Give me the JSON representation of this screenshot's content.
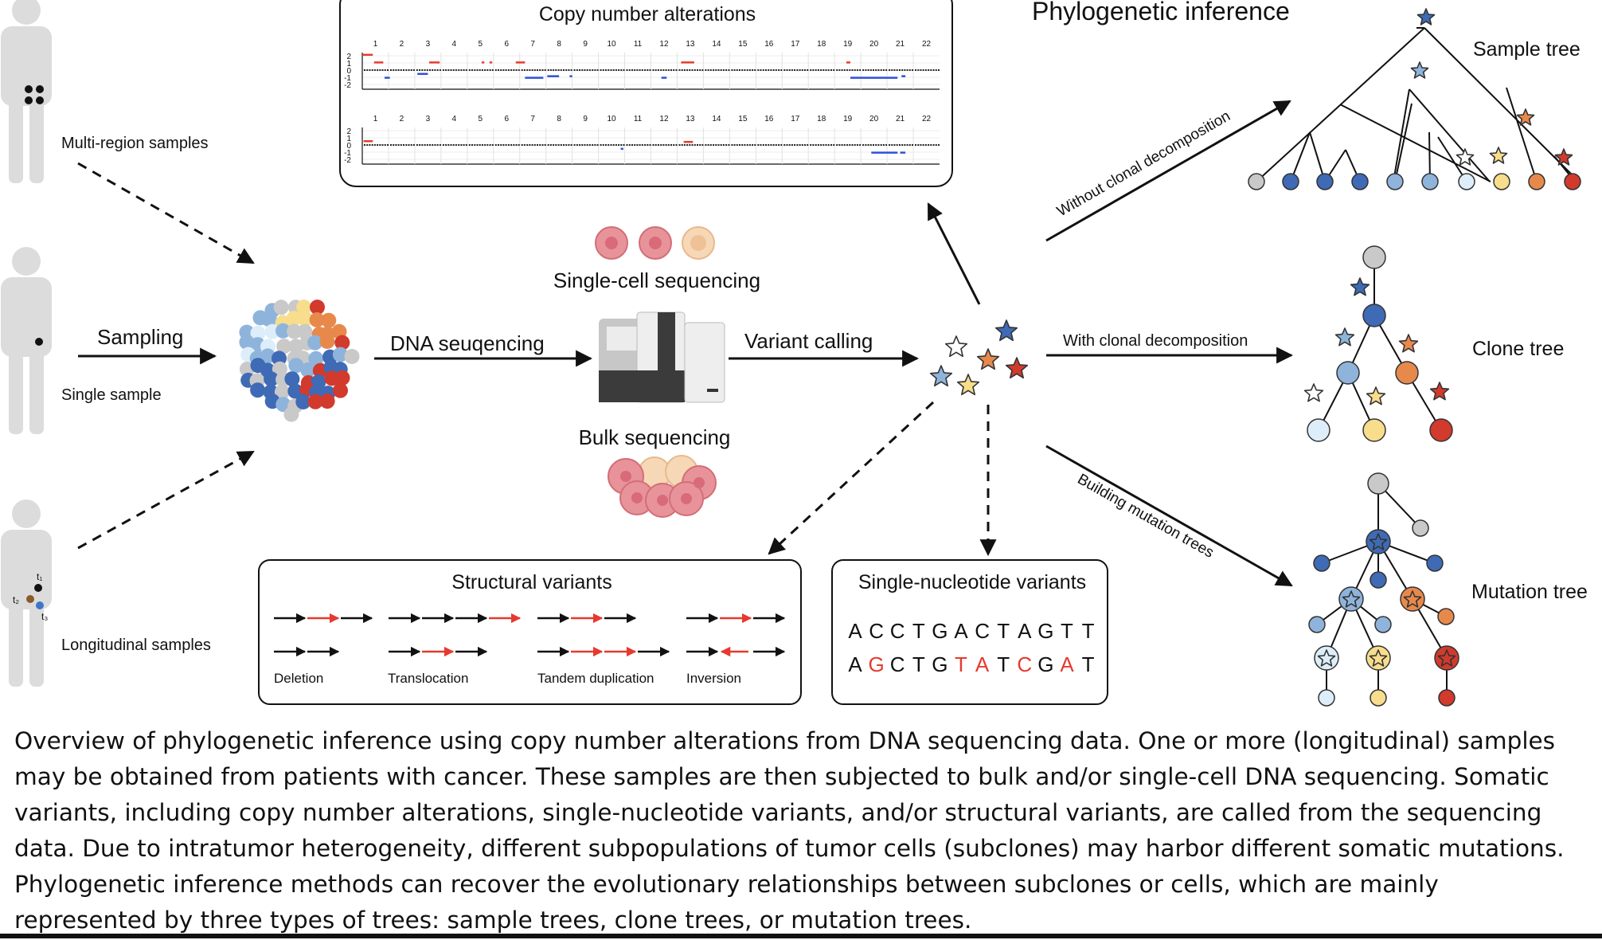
{
  "colors": {
    "line": "#111111",
    "accent_red": "#e53a2f",
    "gain": "#e53a2f",
    "loss": "#2e4fd8",
    "person": "#dcdcdc",
    "cell_pink": "#e8939a",
    "cell_beige": "#f1cf9f",
    "node_grey": "#c9c9c9",
    "node_darkblue": "#3f6ab5",
    "node_lightblue": "#8fb4dc",
    "node_paleblue": "#ddeefa",
    "node_yellow": "#f7dd8c",
    "node_orange": "#e8894c",
    "node_red": "#d13a2c"
  },
  "patients": {
    "multi_region_label": "Multi-region samples",
    "single_label": "Single sample",
    "longitudinal_label": "Longitudinal samples",
    "timepoints": [
      "t₁",
      "t₂",
      "t₃"
    ]
  },
  "flow": {
    "sampling": "Sampling",
    "dna_sequencing": "DNA seuqencing",
    "single_cell": "Single-cell sequencing",
    "bulk": "Bulk sequencing",
    "variant_calling": "Variant calling"
  },
  "cna_panel": {
    "title": "Copy number alterations",
    "chromosomes": [
      "1",
      "2",
      "3",
      "4",
      "5",
      "6",
      "7",
      "8",
      "9",
      "10",
      "11",
      "12",
      "13",
      "14",
      "15",
      "16",
      "17",
      "18",
      "19",
      "20",
      "21",
      "22"
    ],
    "yticks": [
      "2",
      "1",
      "0",
      "-1",
      "-2"
    ]
  },
  "sv_panel": {
    "title": "Structural variants",
    "types": [
      "Deletion",
      "Translocation",
      "Tandem duplication",
      "Inversion"
    ]
  },
  "snv_panel": {
    "title": "Single-nucleotide variants",
    "reference": [
      "A",
      "C",
      "C",
      "T",
      "G",
      "A",
      "C",
      "T",
      "A",
      "G",
      "T",
      "T"
    ],
    "variant": [
      "A",
      "G",
      "C",
      "T",
      "G",
      "T",
      "A",
      "T",
      "C",
      "G",
      "A",
      "T"
    ],
    "mutated_positions": [
      1,
      5,
      6,
      8,
      10
    ]
  },
  "phylo": {
    "heading": "Phylogenetic inference",
    "without_decomposition": "Without clonal decomposition",
    "with_decomposition": "With clonal decomposition",
    "building_mutation_trees": "Building mutation trees",
    "sample_tree": "Sample tree",
    "clone_tree": "Clone tree",
    "mutation_tree": "Mutation tree"
  },
  "caption": [
    "Overview of phylogenetic inference using copy number alterations from DNA sequencing data. One or more (longitudinal) samples",
    "may be obtained from patients with cancer. These samples are then subjected to bulk and/or single-cell DNA sequencing. Somatic",
    "variants, including copy number alterations, single-nucleotide variants, and/or structural variants, are called from the sequencing",
    "data. Due to intratumor heterogeneity, different subpopulations of tumor cells (subclones) may harbor different somatic mutations.",
    "Phylogenetic inference methods can recover the evolutionary relationships between subclones or cells, which are mainly",
    "represented by three types of trees: sample trees, clone trees, or mutation trees."
  ]
}
